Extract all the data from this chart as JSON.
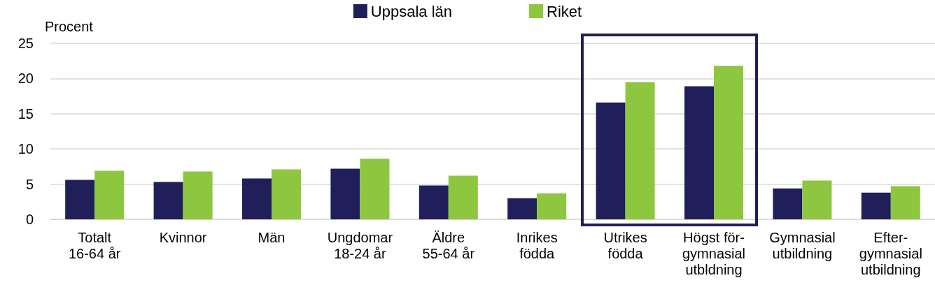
{
  "chart_data": {
    "type": "bar",
    "ylabel": "Procent",
    "categories": [
      "Totalt\n16-64 år",
      "Kvinnor",
      "Män",
      "Ungdomar\n18-24 år",
      "Äldre\n55-64 år",
      "Inrikes\nfödda",
      "Utrikes\nfödda",
      "Högst för-\ngymnasial\nutbldning",
      "Gymnasial\nutbildning",
      "Efter-\ngymnasial\nutbildning"
    ],
    "series": [
      {
        "name": "Uppsala län",
        "color": "#201f5a",
        "values": [
          5.6,
          5.3,
          5.8,
          7.2,
          4.8,
          3.0,
          16.6,
          18.9,
          4.4,
          3.8
        ]
      },
      {
        "name": "Riket",
        "color": "#8dc63f",
        "values": [
          6.9,
          6.8,
          7.1,
          8.6,
          6.2,
          3.7,
          19.5,
          21.8,
          5.5,
          4.7
        ]
      }
    ],
    "ylim": [
      0,
      25
    ],
    "yticks": [
      0,
      5,
      10,
      15,
      20,
      25
    ],
    "grid": "y",
    "legend": "top"
  }
}
